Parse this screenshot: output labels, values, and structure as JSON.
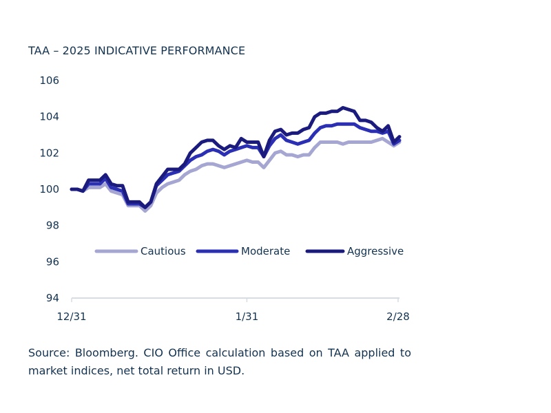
{
  "title": "TAA – 2025 INDICATIVE PERFORMANCE",
  "source": "Source: Bloomberg. CIO Office calculation based on TAA applied to market indices, net total return in USD.",
  "chart_data": {
    "type": "line",
    "ylim": [
      94,
      106
    ],
    "yticks": [
      "94",
      "96",
      "98",
      "100",
      "102",
      "104",
      "106"
    ],
    "xticks": [
      "12/31",
      "1/31",
      "2/28"
    ],
    "x_range": [
      0,
      58
    ],
    "x_tick_positions": [
      0,
      31,
      59
    ],
    "grid": false,
    "legend_position": "middle",
    "series": [
      {
        "name": "Cautious",
        "color": "#a6a6d2",
        "values": [
          100,
          100,
          99.9,
          100.1,
          100.1,
          100.1,
          100.3,
          99.9,
          99.8,
          99.7,
          99.1,
          99.1,
          99.1,
          98.8,
          99.1,
          99.8,
          100.1,
          100.3,
          100.4,
          100.5,
          100.8,
          101,
          101.1,
          101.3,
          101.4,
          101.4,
          101.3,
          101.2,
          101.3,
          101.4,
          101.5,
          101.6,
          101.5,
          101.5,
          101.2,
          101.6,
          102,
          102.1,
          101.9,
          101.9,
          101.8,
          101.9,
          101.9,
          102.3,
          102.6,
          102.6,
          102.6,
          102.6,
          102.5,
          102.6,
          102.6,
          102.6,
          102.6,
          102.6,
          102.7,
          102.8,
          102.6,
          102.4,
          102.6
        ]
      },
      {
        "name": "Moderate",
        "color": "#2a2fb4",
        "values": [
          100,
          100,
          99.9,
          100.3,
          100.3,
          100.3,
          100.6,
          100.1,
          100,
          99.9,
          99.2,
          99.2,
          99.2,
          99,
          99.3,
          100.2,
          100.5,
          100.8,
          100.9,
          101,
          101.3,
          101.6,
          101.8,
          101.9,
          102.1,
          102.2,
          102.1,
          101.9,
          102.1,
          102.2,
          102.3,
          102.4,
          102.3,
          102.3,
          101.8,
          102.4,
          102.8,
          103,
          102.7,
          102.6,
          102.5,
          102.6,
          102.7,
          103.1,
          103.4,
          103.5,
          103.5,
          103.6,
          103.6,
          103.6,
          103.6,
          103.4,
          103.3,
          103.2,
          103.2,
          103.1,
          103.2,
          102.5,
          102.7
        ]
      },
      {
        "name": "Aggressive",
        "color": "#1a1b7c",
        "values": [
          100,
          100,
          99.9,
          100.5,
          100.5,
          100.5,
          100.8,
          100.3,
          100.2,
          100.2,
          99.3,
          99.3,
          99.3,
          99,
          99.3,
          100.3,
          100.7,
          101.1,
          101.1,
          101.1,
          101.4,
          102,
          102.3,
          102.6,
          102.7,
          102.7,
          102.4,
          102.2,
          102.4,
          102.3,
          102.8,
          102.6,
          102.6,
          102.6,
          101.8,
          102.7,
          103.2,
          103.3,
          103,
          103.1,
          103.1,
          103.3,
          103.4,
          104,
          104.2,
          104.2,
          104.3,
          104.3,
          104.5,
          104.4,
          104.3,
          103.8,
          103.8,
          103.7,
          103.4,
          103.2,
          103.5,
          102.6,
          102.9
        ]
      }
    ]
  }
}
